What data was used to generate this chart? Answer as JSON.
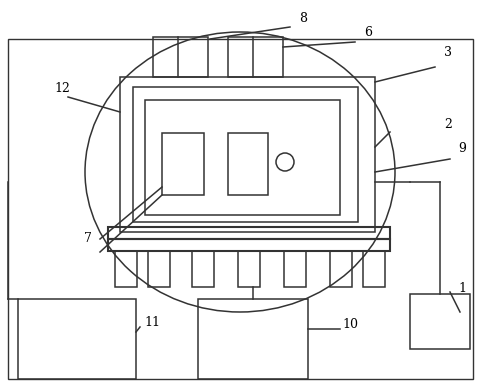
{
  "bg_color": "#ffffff",
  "line_color": "#333333",
  "lw": 1.1,
  "fig_width": 5.04,
  "fig_height": 3.87,
  "dpi": 100
}
